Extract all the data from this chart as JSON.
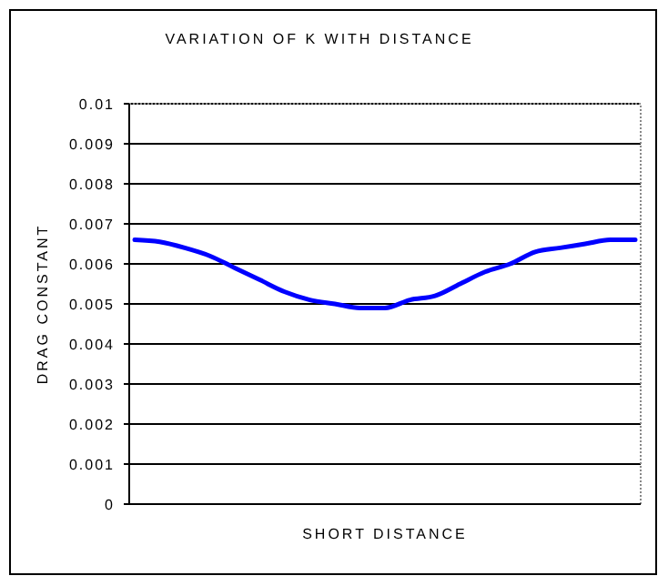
{
  "chart_data": {
    "type": "line",
    "title": "VARIATION OF K WITH DISTANCE",
    "xlabel": "SHORT DISTANCE",
    "ylabel": "DRAG CONSTANT",
    "categories": [
      null,
      null,
      null,
      null,
      null,
      null,
      null,
      null,
      null,
      null,
      null,
      null,
      null,
      null,
      null,
      null,
      null,
      null,
      null,
      null,
      null
    ],
    "series": [
      {
        "color": "#0000ff",
        "values": [
          0.0066,
          0.00655,
          0.0064,
          0.0062,
          0.0059,
          0.0056,
          0.0053,
          0.0051,
          0.005,
          0.0049,
          0.0049,
          0.0051,
          0.0052,
          0.0055,
          0.0058,
          0.006,
          0.0063,
          0.0064,
          0.0065,
          0.0066,
          0.0066
        ]
      }
    ],
    "ylim": [
      0,
      0.01
    ],
    "yticks": [
      0,
      0.001,
      0.002,
      0.003,
      0.004,
      0.005,
      0.006,
      0.007,
      0.008,
      0.009,
      0.01
    ],
    "grid": "y",
    "marker": "none",
    "line_style": "solid"
  }
}
